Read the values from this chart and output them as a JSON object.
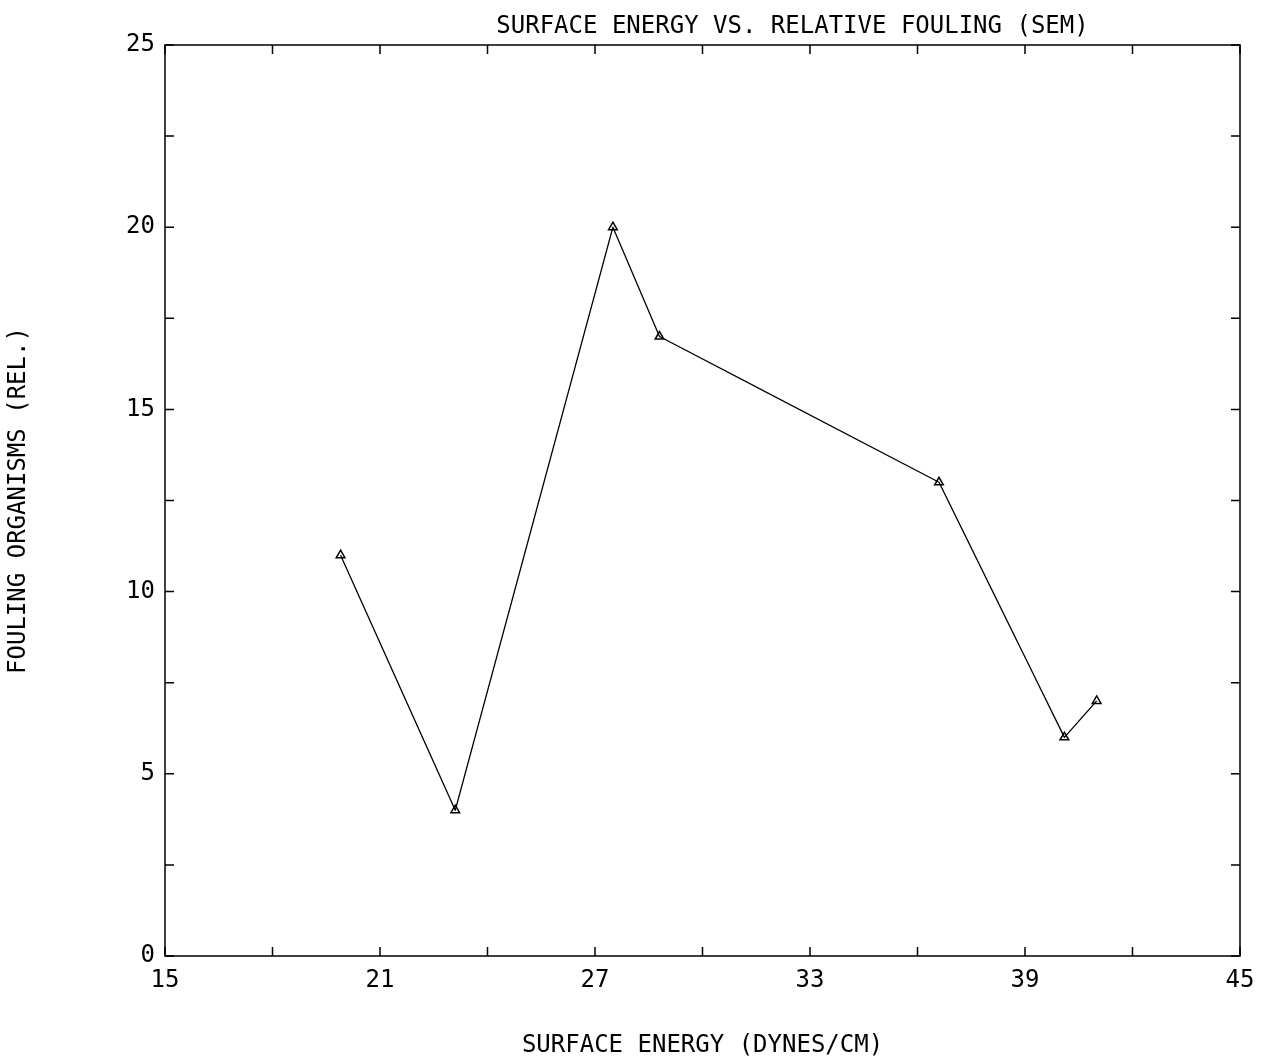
{
  "chart_data": {
    "type": "line",
    "title": "SURFACE ENERGY VS. RELATIVE FOULING (SEM)",
    "xlabel": "SURFACE ENERGY (DYNES/CM)",
    "ylabel": "FOULING ORGANISMS (REL.)",
    "x": [
      19.9,
      23.1,
      27.5,
      28.8,
      36.6,
      40.1,
      41.0
    ],
    "series": [
      {
        "color": "#000000",
        "values": [
          11,
          4,
          20,
          17,
          13,
          6,
          7
        ]
      }
    ],
    "xlim": [
      15,
      45
    ],
    "xticks": [
      15,
      {
        "value": 18,
        "label": null
      },
      21,
      {
        "value": 24,
        "label": null
      },
      27,
      {
        "value": 30,
        "label": null
      },
      33,
      {
        "value": 36,
        "label": null
      },
      39,
      {
        "value": 42,
        "label": null
      },
      45
    ],
    "ylim": [
      0,
      25
    ],
    "yticks": [
      0,
      {
        "value": 2.5,
        "label": null
      },
      5,
      {
        "value": 7.5,
        "label": null
      },
      10,
      {
        "value": 12.5,
        "label": null
      },
      15,
      {
        "value": 17.5,
        "label": null
      },
      20,
      {
        "value": 22.5,
        "label": null
      },
      25
    ],
    "grid": false,
    "legend": false,
    "marker": "triangle",
    "line_style": "solid"
  }
}
